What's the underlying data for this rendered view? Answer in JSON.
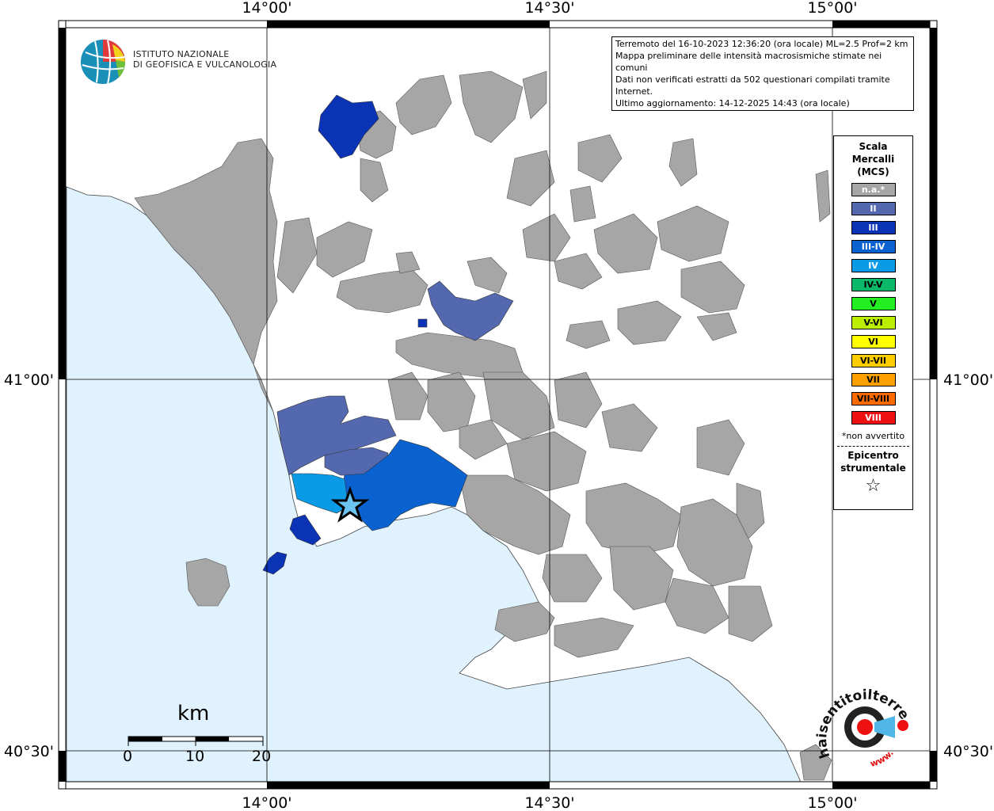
{
  "axes": {
    "lon_labels": [
      "14°00'",
      "14°30'",
      "15°00'"
    ],
    "lat_labels": [
      "41°00'",
      "40°30'"
    ]
  },
  "logo": {
    "name_line1": "ISTITUTO NAZIONALE",
    "name_line2": "DI GEOFISICA E VULCANOLOGIA"
  },
  "info": {
    "line1": "Terremoto del 16-10-2023 12:36:20 (ora locale) ML=2.5 Prof=2 km",
    "line2": "Mappa preliminare delle intensità macrosismiche stimate nei comuni",
    "line3": "Dati non verificati estratti da 502 questionari compilati tramite Internet.",
    "line4": "Ultimo aggiornamento: 14-12-2025 14:43 (ora locale)"
  },
  "legend": {
    "title1": "Scala",
    "title2": "Mercalli",
    "title3": "(MCS)",
    "items": [
      {
        "label": "n.a.*",
        "color": "#a6a6a6",
        "text": "#ffffff"
      },
      {
        "label": "II",
        "color": "#5468b0",
        "text": "#ffffff"
      },
      {
        "label": "III",
        "color": "#0a33b5",
        "text": "#ffffff"
      },
      {
        "label": "III-IV",
        "color": "#0a62d0",
        "text": "#ffffff"
      },
      {
        "label": "IV",
        "color": "#0a9ae6",
        "text": "#ffffff"
      },
      {
        "label": "IV-V",
        "color": "#0ab86a",
        "text": "#000000"
      },
      {
        "label": "V",
        "color": "#22ee22",
        "text": "#000000"
      },
      {
        "label": "V-VI",
        "color": "#bbee00",
        "text": "#000000"
      },
      {
        "label": "VI",
        "color": "#ffff00",
        "text": "#000000"
      },
      {
        "label": "VI-VII",
        "color": "#ffcc00",
        "text": "#000000"
      },
      {
        "label": "VII",
        "color": "#ff9f00",
        "text": "#000000"
      },
      {
        "label": "VII-VIII",
        "color": "#ff6a00",
        "text": "#000000"
      },
      {
        "label": "VIII",
        "color": "#ee1111",
        "text": "#ffffff"
      }
    ],
    "note": "*non avvertito",
    "epi1": "Epicentro",
    "epi2": "strumentale",
    "star": "☆"
  },
  "scale": {
    "unit": "km",
    "labels": [
      "0",
      "10",
      "20"
    ]
  },
  "colors": {
    "sea": "#e0f2fd",
    "land_na": "#a6a6a6",
    "land_empty": "#ffffff"
  },
  "badge": {
    "text_top": "haisentitoilterremoto.it",
    "text_bottom": "www."
  }
}
